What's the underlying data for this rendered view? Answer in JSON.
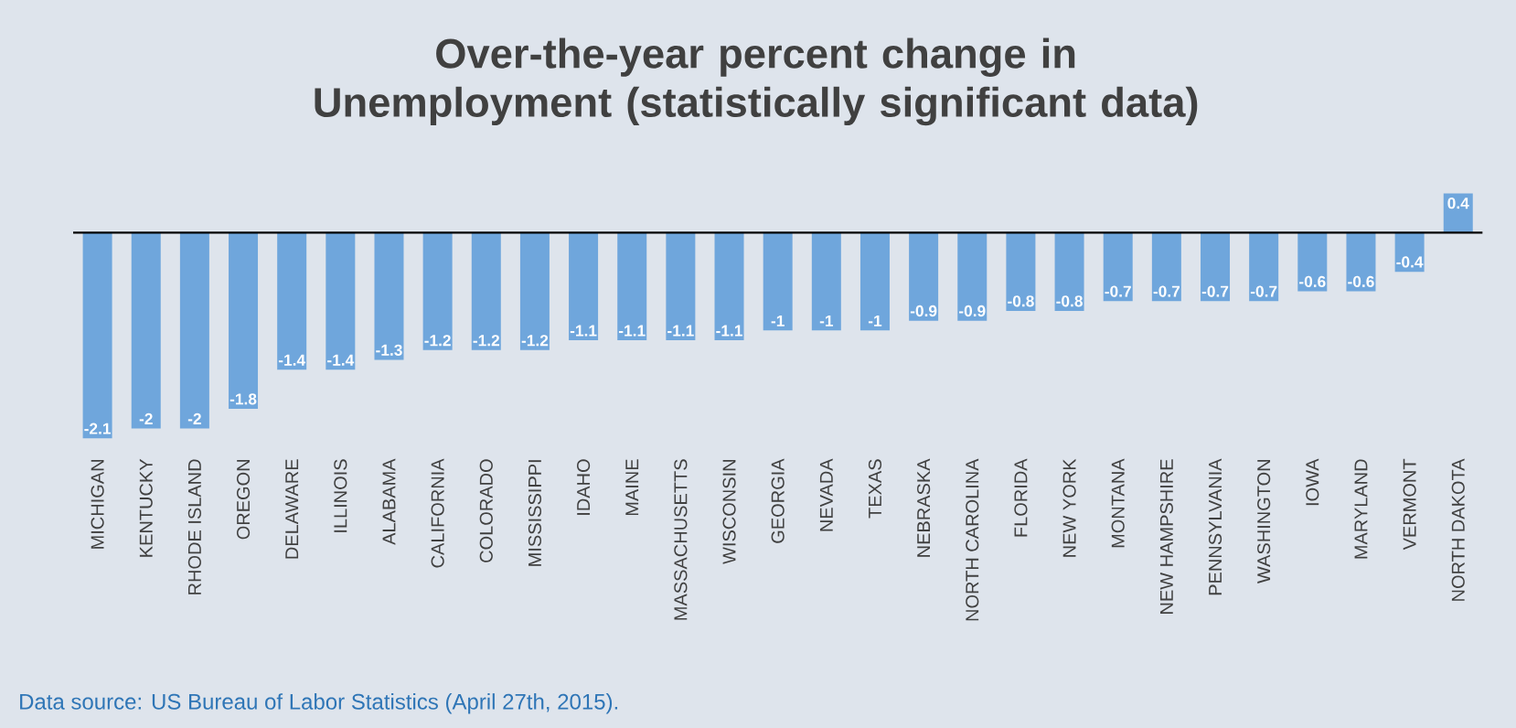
{
  "chart_data": {
    "type": "bar",
    "title": "Over-the-year percent change in Unemployment (statistically significant data)",
    "categories": [
      "MICHIGAN",
      "KENTUCKY",
      "RHODE ISLAND",
      "OREGON",
      "DELAWARE",
      "ILLINOIS",
      "ALABAMA",
      "CALIFORNIA",
      "COLORADO",
      "MISSISSIPPI",
      "IDAHO",
      "MAINE",
      "MASSACHUSETTS",
      "WISCONSIN",
      "GEORGIA",
      "NEVADA",
      "TEXAS",
      "NEBRASKA",
      "NORTH CAROLINA",
      "FLORIDA",
      "NEW YORK",
      "MONTANA",
      "NEW HAMPSHIRE",
      "PENNSYLVANIA",
      "WASHINGTON",
      "IOWA",
      "MARYLAND",
      "VERMONT",
      "NORTH DAKOTA"
    ],
    "values": [
      -2.1,
      -2,
      -2,
      -1.8,
      -1.4,
      -1.4,
      -1.3,
      -1.2,
      -1.2,
      -1.2,
      -1.1,
      -1.1,
      -1.1,
      -1.1,
      -1,
      -1,
      -1,
      -0.9,
      -0.9,
      -0.8,
      -0.8,
      -0.7,
      -0.7,
      -0.7,
      -0.7,
      -0.6,
      -0.6,
      -0.4,
      0.4
    ],
    "color": "#6fa6dc",
    "data_labels": true,
    "tick_labels": "x",
    "annotations": [
      "Data source: US Bureau of Labor Statistics (April 27th, 2015)."
    ]
  }
}
